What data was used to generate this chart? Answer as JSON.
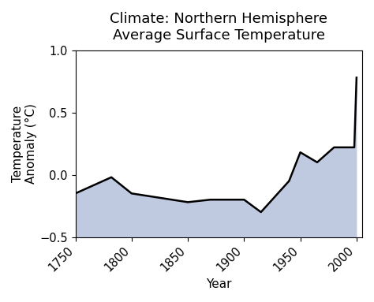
{
  "title_line1": "Climate: Northern Hemisphere",
  "title_line2": "Average Surface Temperature",
  "xlabel": "Year",
  "ylabel": "Temperature\nAnomaly (°C)",
  "xlim": [
    1750,
    2005
  ],
  "ylim": [
    -0.5,
    1.0
  ],
  "xticks": [
    1750,
    1800,
    1850,
    1900,
    1950,
    2000
  ],
  "yticks": [
    -0.5,
    0.0,
    0.5,
    1.0
  ],
  "fill_color": "#bfc9e0",
  "line_color": "#000000",
  "line_width": 1.8,
  "years": [
    1750,
    1782,
    1800,
    1850,
    1870,
    1900,
    1915,
    1940,
    1950,
    1965,
    1980,
    1998,
    2000
  ],
  "values": [
    -0.15,
    -0.02,
    -0.15,
    -0.22,
    -0.2,
    -0.2,
    -0.3,
    -0.05,
    0.18,
    0.1,
    0.22,
    0.22,
    0.78
  ],
  "background_color": "#ffffff",
  "title_fontsize": 13,
  "label_fontsize": 11,
  "tick_fontsize": 10.5
}
